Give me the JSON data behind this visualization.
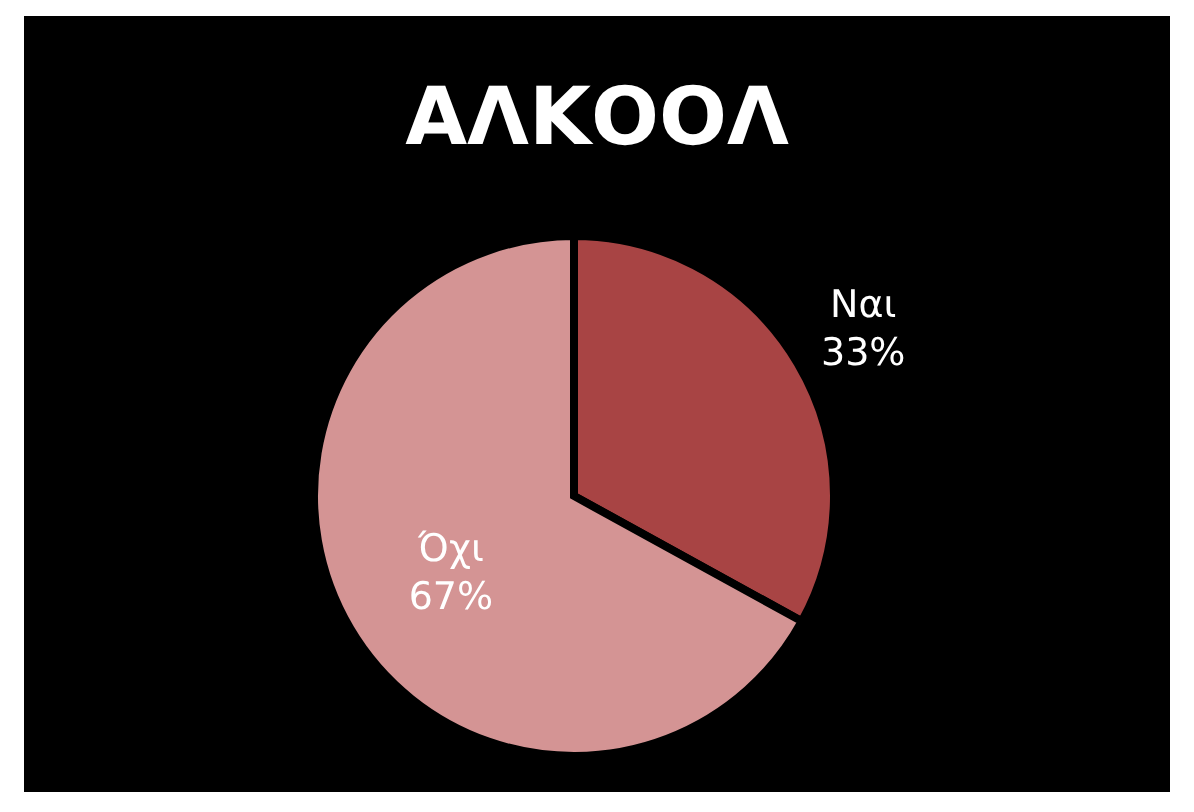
{
  "chart_data": {
    "type": "pie",
    "title": "ΑΛΚΟΟΛ",
    "categories": [
      "Ναι",
      "Όχι"
    ],
    "values": [
      33,
      67
    ],
    "value_labels": [
      "33%",
      "67%"
    ],
    "colors": [
      "#a84444",
      "#d49494"
    ],
    "legend": false
  }
}
